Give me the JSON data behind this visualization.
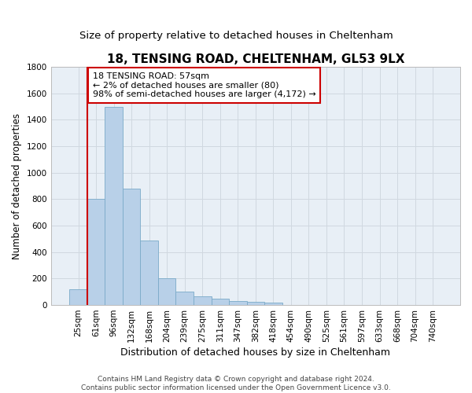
{
  "title": "18, TENSING ROAD, CHELTENHAM, GL53 9LX",
  "subtitle": "Size of property relative to detached houses in Cheltenham",
  "xlabel": "Distribution of detached houses by size in Cheltenham",
  "ylabel": "Number of detached properties",
  "footer_line1": "Contains HM Land Registry data © Crown copyright and database right 2024.",
  "footer_line2": "Contains public sector information licensed under the Open Government Licence v3.0.",
  "categories": [
    "25sqm",
    "61sqm",
    "96sqm",
    "132sqm",
    "168sqm",
    "204sqm",
    "239sqm",
    "275sqm",
    "311sqm",
    "347sqm",
    "382sqm",
    "418sqm",
    "454sqm",
    "490sqm",
    "525sqm",
    "561sqm",
    "597sqm",
    "633sqm",
    "668sqm",
    "704sqm",
    "740sqm"
  ],
  "values": [
    120,
    800,
    1500,
    880,
    490,
    205,
    100,
    65,
    45,
    30,
    25,
    20,
    0,
    0,
    0,
    0,
    0,
    0,
    0,
    0,
    0
  ],
  "bar_color": "#b8d0e8",
  "bar_edge_color": "#7aaac8",
  "grid_color": "#d0d8e0",
  "plot_bg_color": "#e8eff6",
  "background_color": "#ffffff",
  "ylim": [
    0,
    1800
  ],
  "yticks": [
    0,
    200,
    400,
    600,
    800,
    1000,
    1200,
    1400,
    1600,
    1800
  ],
  "property_line_color": "#cc0000",
  "annotation_text_line1": "18 TENSING ROAD: 57sqm",
  "annotation_text_line2": "← 2% of detached houses are smaller (80)",
  "annotation_text_line3": "98% of semi-detached houses are larger (4,172) →",
  "annotation_box_facecolor": "#ffffff",
  "annotation_box_edgecolor": "#cc0000",
  "title_fontsize": 11,
  "subtitle_fontsize": 9.5,
  "xlabel_fontsize": 9,
  "ylabel_fontsize": 8.5,
  "tick_fontsize": 7.5,
  "annotation_fontsize": 8,
  "footer_fontsize": 6.5
}
